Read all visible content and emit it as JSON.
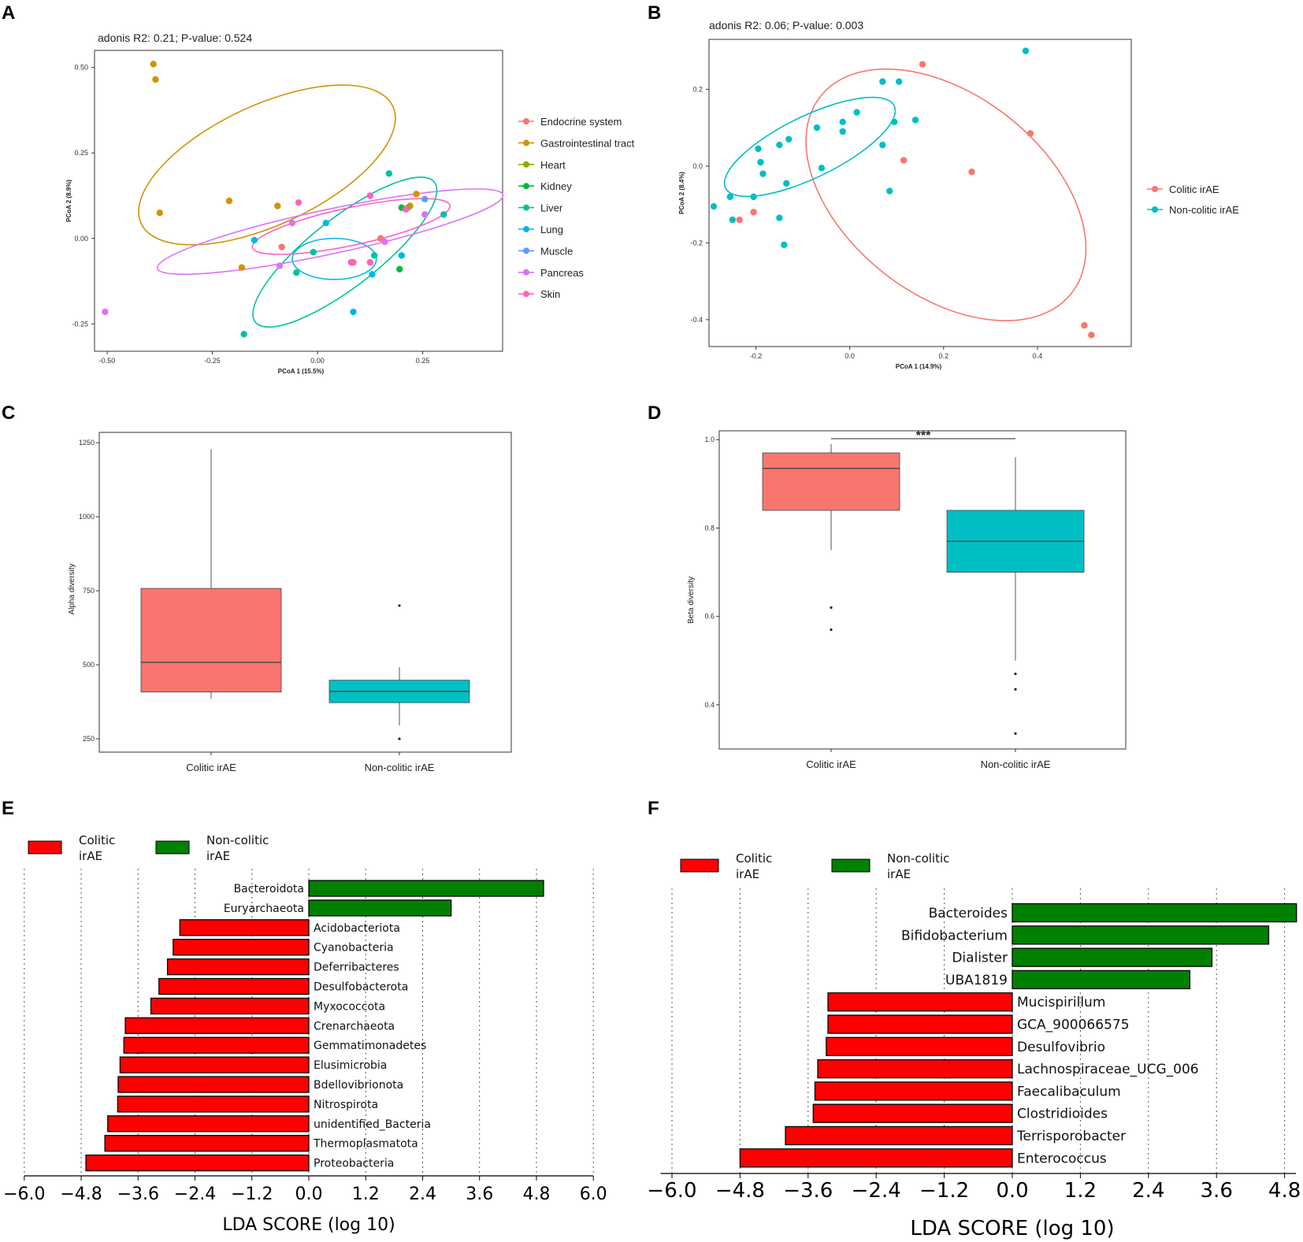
{
  "chart_data": [
    {
      "panel": "A",
      "type": "scatter",
      "title": "adonis R2: 0.21; P-value: 0.524",
      "xlabel": "PCoA 1 (15.5%)",
      "ylabel": "PCoA 2 (8.9%)",
      "xlim": [
        -0.53,
        0.44
      ],
      "ylim": [
        -0.33,
        0.55
      ],
      "xticks": [
        "-0.50",
        "-0.25",
        "0.00",
        "0.25"
      ],
      "yticks": [
        "-0.25",
        "0.00",
        "0.25",
        "0.50"
      ],
      "xtick_values": [
        -0.5,
        -0.25,
        0.0,
        0.25
      ],
      "ytick_values": [
        -0.25,
        0.0,
        0.25,
        0.5
      ],
      "series": [
        {
          "name": "Endocrine system",
          "color": "#F8766D",
          "points": [
            [
              -0.085,
              -0.025
            ],
            [
              0.085,
              -0.07
            ],
            [
              0.15,
              0.0
            ]
          ],
          "ellipse": null
        },
        {
          "name": "Gastrointestinal tract",
          "color": "#D39200",
          "points": [
            [
              -0.39,
              0.51
            ],
            [
              -0.385,
              0.465
            ],
            [
              -0.375,
              0.075
            ],
            [
              -0.21,
              0.11
            ],
            [
              -0.095,
              0.095
            ],
            [
              -0.18,
              -0.085
            ],
            [
              0.22,
              0.095
            ],
            [
              0.235,
              0.13
            ]
          ],
          "ellipse": {
            "cx": -0.12,
            "cy": 0.215,
            "rx": 0.33,
            "ry": 0.175,
            "angle": -25
          }
        },
        {
          "name": "Heart",
          "color": "#93AA00",
          "points": [
            [
              0.215,
              0.09
            ]
          ],
          "ellipse": null
        },
        {
          "name": "Kidney",
          "color": "#00BA38",
          "points": [
            [
              0.2,
              0.09
            ],
            [
              0.195,
              -0.09
            ]
          ],
          "ellipse": null
        },
        {
          "name": "Liver",
          "color": "#00C19F",
          "points": [
            [
              0.17,
              0.19
            ],
            [
              0.3,
              0.07
            ],
            [
              -0.01,
              -0.04
            ],
            [
              -0.05,
              -0.1
            ],
            [
              0.135,
              -0.05
            ],
            [
              -0.175,
              -0.28
            ]
          ],
          "ellipse": {
            "cx": 0.065,
            "cy": -0.04,
            "rx": 0.27,
            "ry": 0.1,
            "angle": -38
          }
        },
        {
          "name": "Lung",
          "color": "#00B9E3",
          "points": [
            [
              -0.15,
              -0.005
            ],
            [
              0.02,
              0.045
            ],
            [
              0.13,
              -0.105
            ],
            [
              0.085,
              -0.215
            ],
            [
              0.2,
              -0.05
            ]
          ],
          "ellipse": {
            "cx": 0.04,
            "cy": -0.06,
            "rx": 0.1,
            "ry": 0.06,
            "angle": 0
          }
        },
        {
          "name": "Muscle",
          "color": "#619CFF",
          "points": [
            [
              0.255,
              0.115
            ]
          ],
          "ellipse": null
        },
        {
          "name": "Pancreas",
          "color": "#DB72FB",
          "points": [
            [
              -0.505,
              -0.215
            ],
            [
              -0.06,
              0.045
            ],
            [
              0.255,
              0.07
            ],
            [
              -0.09,
              -0.08
            ],
            [
              0.16,
              -0.01
            ]
          ],
          "ellipse": {
            "cx": 0.03,
            "cy": 0.02,
            "rx": 0.42,
            "ry": 0.065,
            "angle": -12
          }
        },
        {
          "name": "Skin",
          "color": "#FF61C3",
          "points": [
            [
              -0.045,
              0.105
            ],
            [
              0.125,
              0.125
            ],
            [
              0.21,
              0.085
            ],
            [
              0.125,
              -0.07
            ],
            [
              0.08,
              -0.07
            ]
          ],
          "ellipse": {
            "cx": 0.08,
            "cy": 0.035,
            "rx": 0.24,
            "ry": 0.055,
            "angle": -12
          }
        }
      ],
      "legend": "right"
    },
    {
      "panel": "B",
      "type": "scatter",
      "title": "adonis R2: 0.06; P-value: 0.003",
      "xlabel": "PCoA 1 (14.9%)",
      "ylabel": "PCoA 2 (8.4%)",
      "xlim": [
        -0.3,
        0.6
      ],
      "ylim": [
        -0.47,
        0.33
      ],
      "xticks": [
        "-0.2",
        "0.0",
        "0.2",
        "0.4"
      ],
      "yticks": [
        "-0.4",
        "-0.2",
        "0.0",
        "0.2"
      ],
      "xtick_values": [
        -0.2,
        0.0,
        0.2,
        0.4
      ],
      "ytick_values": [
        -0.4,
        -0.2,
        0.0,
        0.2
      ],
      "series": [
        {
          "name": "Colitic irAE",
          "color": "#F8766D",
          "points": [
            [
              0.155,
              0.265
            ],
            [
              0.385,
              0.085
            ],
            [
              0.115,
              0.015
            ],
            [
              0.26,
              -0.015
            ],
            [
              -0.235,
              -0.14
            ],
            [
              -0.205,
              -0.12
            ],
            [
              0.5,
              -0.415
            ],
            [
              0.515,
              -0.44
            ]
          ],
          "ellipse": {
            "cx": 0.205,
            "cy": -0.075,
            "rx": 0.34,
            "ry": 0.26,
            "angle": 38
          }
        },
        {
          "name": "Non-colitic irAE",
          "color": "#00BFC4",
          "points": [
            [
              0.375,
              0.3
            ],
            [
              0.07,
              0.22
            ],
            [
              0.105,
              0.22
            ],
            [
              0.015,
              0.14
            ],
            [
              -0.015,
              0.115
            ],
            [
              0.095,
              0.115
            ],
            [
              0.14,
              0.12
            ],
            [
              -0.07,
              0.1
            ],
            [
              -0.015,
              0.09
            ],
            [
              -0.13,
              0.07
            ],
            [
              -0.15,
              0.055
            ],
            [
              0.07,
              0.055
            ],
            [
              -0.195,
              0.045
            ],
            [
              -0.19,
              0.01
            ],
            [
              -0.185,
              -0.02
            ],
            [
              -0.06,
              -0.005
            ],
            [
              -0.135,
              -0.045
            ],
            [
              0.085,
              -0.065
            ],
            [
              -0.205,
              -0.08
            ],
            [
              -0.255,
              -0.08
            ],
            [
              -0.29,
              -0.105
            ],
            [
              -0.25,
              -0.14
            ],
            [
              -0.15,
              -0.135
            ],
            [
              -0.14,
              -0.205
            ]
          ],
          "ellipse": {
            "cx": -0.085,
            "cy": 0.05,
            "rx": 0.2,
            "ry": 0.08,
            "angle": -26
          }
        }
      ],
      "legend": "right"
    },
    {
      "panel": "C",
      "type": "box",
      "xlabel": "",
      "ylabel": "Alpha diversity",
      "ylim": [
        205,
        1285
      ],
      "yticks": [
        "250",
        "500",
        "750",
        "1000",
        "1250"
      ],
      "ytick_values": [
        250,
        500,
        750,
        1000,
        1250
      ],
      "categories": [
        "Colitic irAE",
        "Non-colitic irAE"
      ],
      "colors": [
        "#F8766D",
        "#00BFC4"
      ],
      "series": [
        {
          "name": "Colitic irAE",
          "min": 385,
          "q1": 408,
          "median": 508,
          "q3": 758,
          "max": 1228,
          "outliers": []
        },
        {
          "name": "Non-colitic irAE",
          "min": 295,
          "q1": 372,
          "median": 410,
          "q3": 448,
          "max": 492,
          "outliers": [
            700,
            250
          ]
        }
      ]
    },
    {
      "panel": "D",
      "type": "box",
      "xlabel": "",
      "ylabel": "Beta diversity",
      "ylim": [
        0.3,
        1.02
      ],
      "yticks": [
        "0.4",
        "0.6",
        "0.8",
        "1.0"
      ],
      "ytick_values": [
        0.4,
        0.6,
        0.8,
        1.0
      ],
      "categories": [
        "Colitic irAE",
        "Non-colitic irAE"
      ],
      "colors": [
        "#F8766D",
        "#00BFC4"
      ],
      "significance": "***",
      "series": [
        {
          "name": "Colitic irAE",
          "min": 0.75,
          "q1": 0.84,
          "median": 0.935,
          "q3": 0.97,
          "max": 0.99,
          "outliers": [
            0.62,
            0.57
          ]
        },
        {
          "name": "Non-colitic irAE",
          "min": 0.5,
          "q1": 0.7,
          "median": 0.77,
          "q3": 0.84,
          "max": 0.96,
          "outliers": [
            0.47,
            0.435,
            0.335
          ]
        }
      ]
    },
    {
      "panel": "E",
      "type": "bar",
      "orientation": "horizontal",
      "xlabel": "LDA SCORE (log 10)",
      "xlim": [
        -6.0,
        6.0
      ],
      "xticks": [
        "−6.0",
        "−4.8",
        "−3.6",
        "−2.4",
        "−1.2",
        "0.0",
        "1.2",
        "2.4",
        "3.6",
        "4.8",
        "6.0"
      ],
      "xtick_values": [
        -6.0,
        -4.8,
        -3.6,
        -2.4,
        -1.2,
        0.0,
        1.2,
        2.4,
        3.6,
        4.8,
        6.0
      ],
      "legend_items": [
        {
          "label1": "Colitic",
          "label2": "irAE",
          "color": "#FF0000"
        },
        {
          "label1": "Non-colitic",
          "label2": "irAE",
          "color": "#008000"
        }
      ],
      "categories": [
        "Bacteroidota",
        "Euryarchaeota",
        "Acidobacteriota",
        "Cyanobacteria",
        "Deferribacteres",
        "Desulfobacterota",
        "Myxococcota",
        "Crenarchaeota",
        "Gemmatimonadetes",
        "Elusimicrobia",
        "Bdellovibrionota",
        "Nitrospirota",
        "unidentified_Bacteria",
        "Thermoplasmatota",
        "Proteobacteria"
      ],
      "values": [
        4.95,
        3.0,
        -2.72,
        -2.86,
        -2.98,
        -3.16,
        -3.33,
        -3.87,
        -3.9,
        -3.98,
        -4.02,
        -4.03,
        -4.24,
        -4.3,
        -4.7
      ]
    },
    {
      "panel": "F",
      "type": "bar",
      "orientation": "horizontal",
      "xlabel": "LDA SCORE (log 10)",
      "xlim": [
        -6.2,
        5.0
      ],
      "xticks": [
        "−6.0",
        "−4.8",
        "−3.6",
        "−2.4",
        "−1.2",
        "0.0",
        "1.2",
        "2.4",
        "3.6",
        "4.8"
      ],
      "xtick_values": [
        -6.0,
        -4.8,
        -3.6,
        -2.4,
        -1.2,
        0.0,
        1.2,
        2.4,
        3.6,
        4.8
      ],
      "legend_items": [
        {
          "label1": "Colitic",
          "label2": "irAE",
          "color": "#FF0000"
        },
        {
          "label1": "Non-colitic",
          "label2": "irAE",
          "color": "#008000"
        }
      ],
      "categories": [
        "Bacteroides",
        "Bifidobacterium",
        "Dialister",
        "UBA1819",
        "Mucispirillum",
        "GCA_900066575",
        "Desulfovibrio",
        "Lachnospiraceae_UCG_006",
        "Faecalibaculum",
        "Clostridioides",
        "Terrisporobacter",
        "Enterococcus"
      ],
      "values": [
        5.01,
        4.52,
        3.52,
        3.13,
        -3.25,
        -3.25,
        -3.28,
        -3.43,
        -3.48,
        -3.51,
        -4.0,
        -4.8
      ]
    }
  ]
}
